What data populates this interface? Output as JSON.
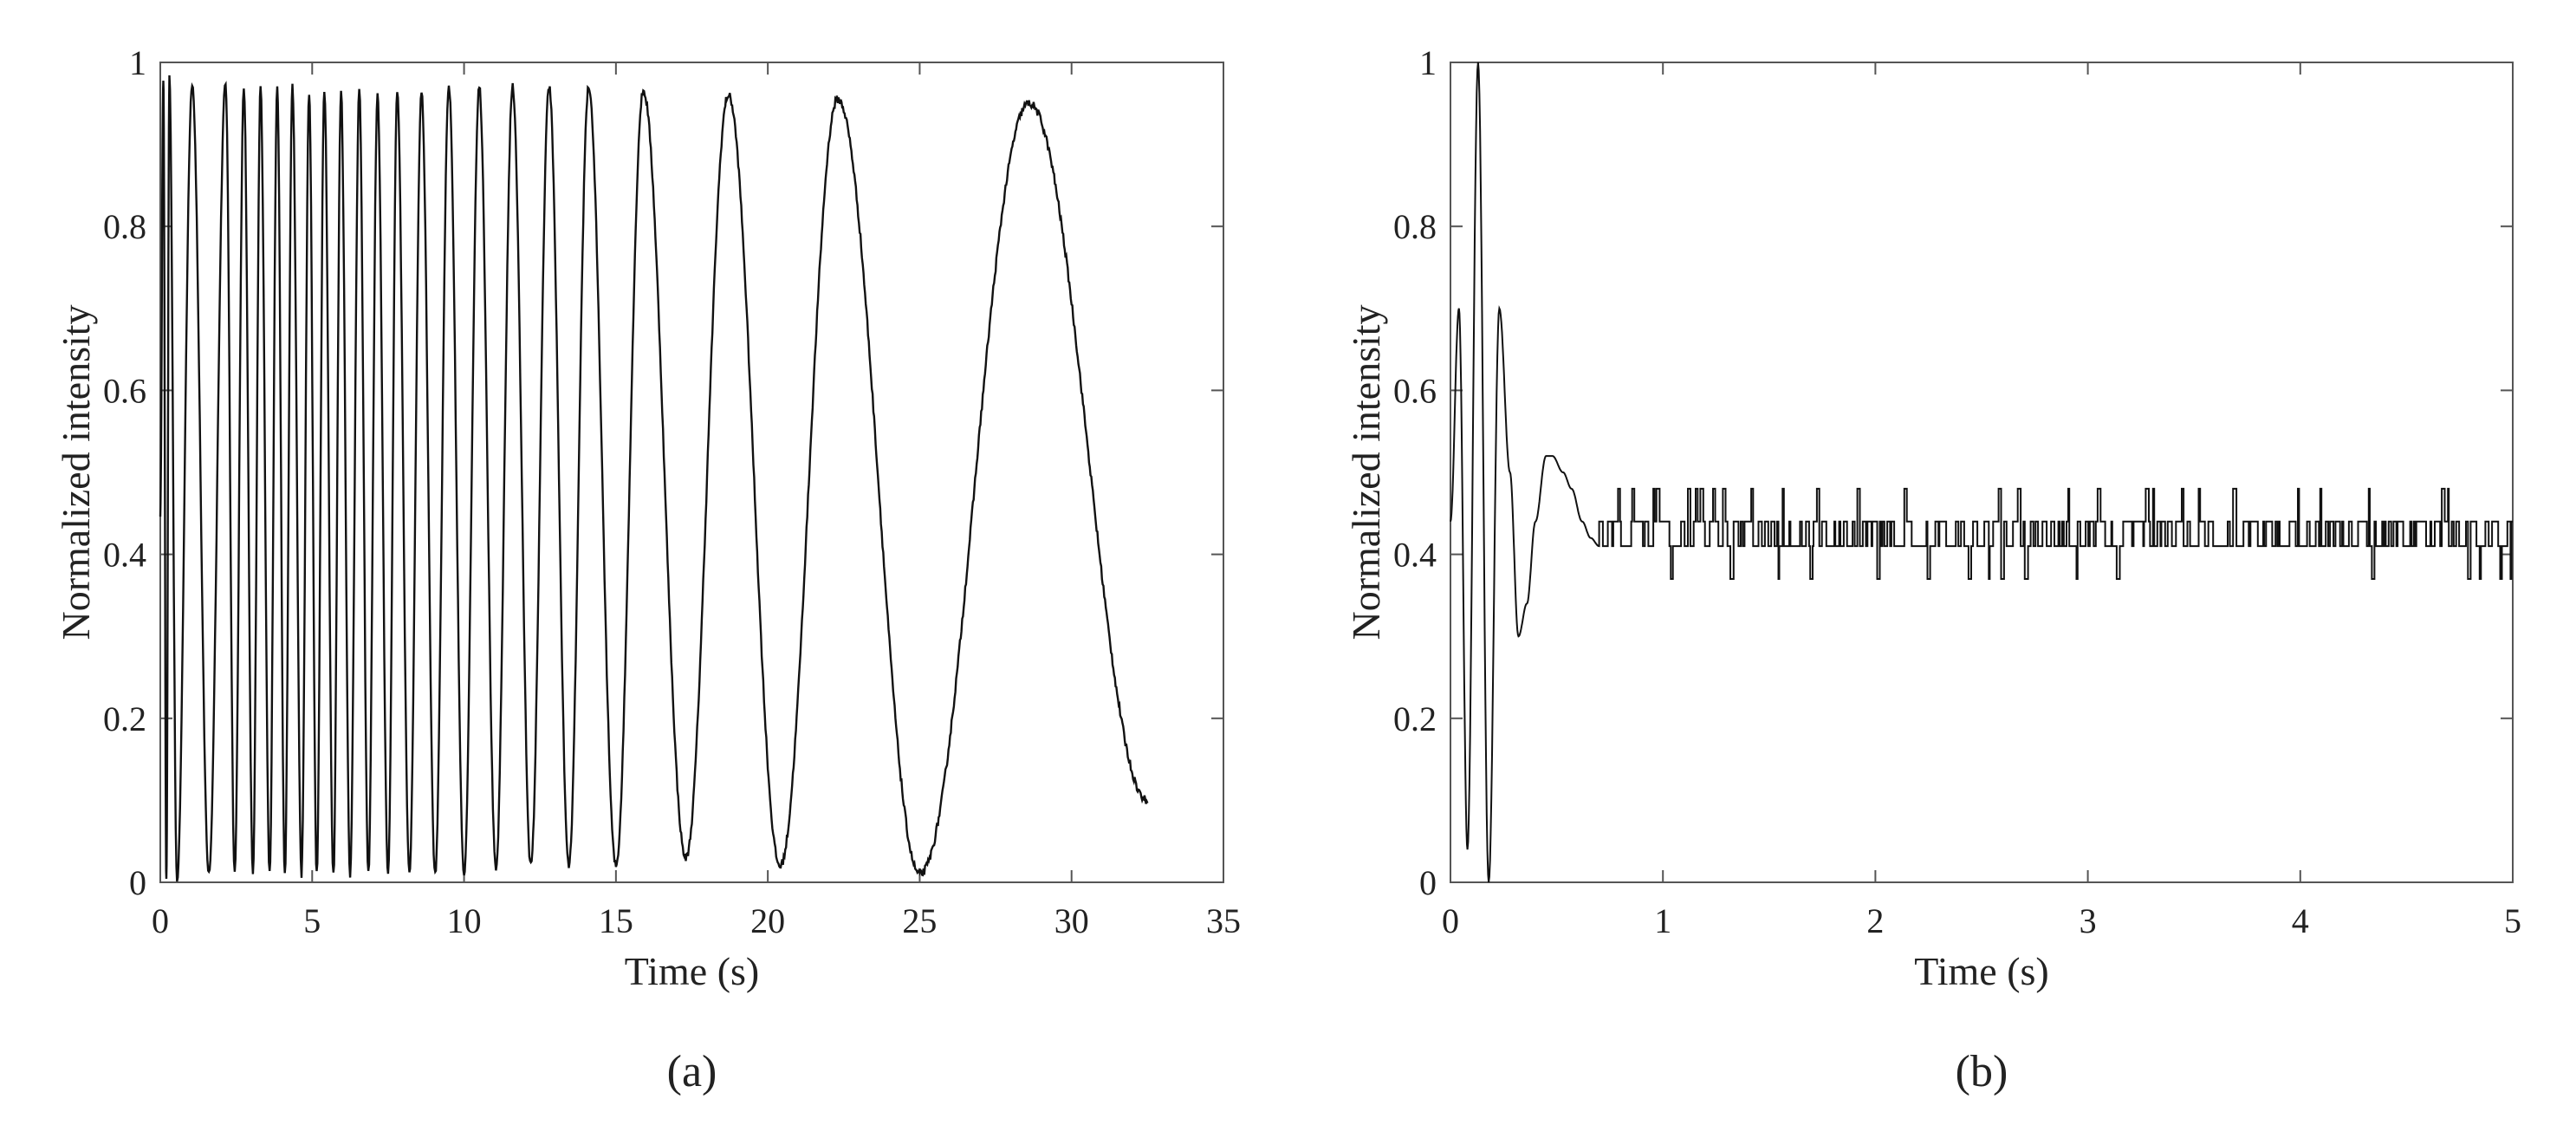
{
  "chart_data": [
    {
      "type": "line",
      "caption": "(a)",
      "xlabel": "Time (s)",
      "ylabel": "Normalized intensity",
      "xlim": [
        0,
        35
      ],
      "ylim": [
        0,
        1
      ],
      "xticks": [
        "0",
        "5",
        "10",
        "15",
        "20",
        "25",
        "30",
        "35"
      ],
      "yticks": [
        "0",
        "0.2",
        "0.4",
        "0.6",
        "0.8",
        "1"
      ],
      "grid": false,
      "legend": "none",
      "line_color": "#111111",
      "series": [
        {
          "peaks_time_s": [
            0.1,
            0.3,
            1.05,
            2.15,
            2.75,
            3.3,
            3.85,
            4.35,
            4.9,
            5.4,
            5.95,
            6.55,
            7.15,
            7.8,
            8.6,
            9.5,
            10.5,
            11.6,
            12.8,
            14.1,
            15.9,
            18.7,
            22.3,
            28.6
          ],
          "peaks_value": [
            0.98,
            0.98,
            0.975,
            0.975,
            0.97,
            0.97,
            0.97,
            0.97,
            0.965,
            0.965,
            0.965,
            0.965,
            0.96,
            0.965,
            0.965,
            0.97,
            0.97,
            0.97,
            0.97,
            0.97,
            0.965,
            0.96,
            0.955,
            0.95
          ],
          "troughs_time_s": [
            0.2,
            0.55,
            1.6,
            2.45,
            3.05,
            3.6,
            4.1,
            4.65,
            5.15,
            5.7,
            6.25,
            6.85,
            7.5,
            8.2,
            9.05,
            10.0,
            11.05,
            12.2,
            13.45,
            15.0,
            17.3,
            20.4,
            25.0
          ],
          "troughs_value": [
            0.0,
            0.0,
            0.01,
            0.01,
            0.01,
            0.01,
            0.01,
            0.01,
            0.01,
            0.01,
            0.01,
            0.01,
            0.01,
            0.01,
            0.01,
            0.01,
            0.015,
            0.02,
            0.02,
            0.02,
            0.03,
            0.02,
            0.01
          ],
          "end": {
            "time_s": 32.5,
            "value": 0.1
          }
        }
      ]
    },
    {
      "type": "line",
      "caption": "(b)",
      "xlabel": "Time (s)",
      "ylabel": "Normalized intensity",
      "xlim": [
        0,
        5
      ],
      "ylim": [
        0,
        1
      ],
      "xticks": [
        "0",
        "1",
        "2",
        "3",
        "4",
        "5"
      ],
      "yticks": [
        "0",
        "0.2",
        "0.4",
        "0.6",
        "0.8",
        "1"
      ],
      "grid": false,
      "legend": "none",
      "line_color": "#111111",
      "series": [
        {
          "x": [
            0,
            0.04,
            0.08,
            0.13,
            0.18,
            0.23,
            0.28,
            0.32,
            0.36,
            0.4,
            0.45,
            0.48,
            0.53,
            0.57,
            0.62,
            0.66,
            0.7,
            5.0
          ],
          "y": [
            0.44,
            0.7,
            0.04,
            1.0,
            0.0,
            0.7,
            0.5,
            0.3,
            0.34,
            0.44,
            0.52,
            0.52,
            0.5,
            0.48,
            0.44,
            0.42,
            0.41,
            0.41
          ],
          "steady_state_level": 0.41,
          "noise_levels": [
            0.37,
            0.41,
            0.44,
            0.48
          ]
        }
      ]
    }
  ]
}
